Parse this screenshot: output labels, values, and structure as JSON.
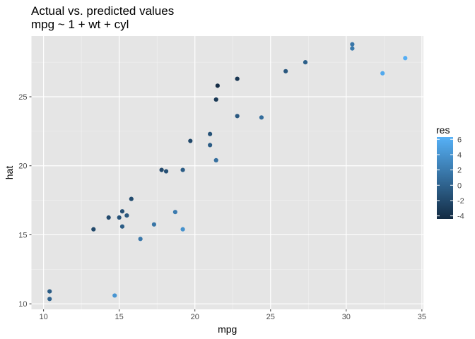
{
  "chart_data": {
    "type": "scatter",
    "title": "Actual vs. predicted values",
    "subtitle": "mpg ~ 1 + wt + cyl",
    "xlabel": "mpg",
    "ylabel": "hat",
    "xlim": [
      9.2,
      35.1
    ],
    "ylim": [
      9.6,
      29.4
    ],
    "x_ticks": [
      10,
      15,
      20,
      25,
      30,
      35
    ],
    "y_ticks": [
      10,
      15,
      20,
      25
    ],
    "grid": true,
    "legend": {
      "title": "res",
      "position": "right",
      "type": "colorbar",
      "range": [
        -4.4,
        6.3
      ],
      "ticks": [
        6,
        4,
        2,
        0,
        -2,
        -4
      ],
      "low_color": "#132B43",
      "high_color": "#56B1F7"
    },
    "points": [
      {
        "x": 10.4,
        "y": 10.9,
        "res": -0.5
      },
      {
        "x": 10.4,
        "y": 10.35,
        "res": 0.0
      },
      {
        "x": 14.7,
        "y": 10.6,
        "res": 4.1
      },
      {
        "x": 13.3,
        "y": 15.4,
        "res": -2.1
      },
      {
        "x": 14.3,
        "y": 16.25,
        "res": -1.9
      },
      {
        "x": 15.0,
        "y": 16.25,
        "res": -1.2
      },
      {
        "x": 15.2,
        "y": 16.7,
        "res": -1.5
      },
      {
        "x": 15.2,
        "y": 15.6,
        "res": -0.4
      },
      {
        "x": 15.5,
        "y": 16.4,
        "res": -0.9
      },
      {
        "x": 15.8,
        "y": 17.6,
        "res": -1.8
      },
      {
        "x": 16.4,
        "y": 14.7,
        "res": 1.7
      },
      {
        "x": 17.3,
        "y": 15.75,
        "res": 1.5
      },
      {
        "x": 18.7,
        "y": 16.65,
        "res": 2.0
      },
      {
        "x": 19.2,
        "y": 15.4,
        "res": 3.8
      },
      {
        "x": 17.8,
        "y": 19.7,
        "res": -1.9
      },
      {
        "x": 18.1,
        "y": 19.6,
        "res": -1.5
      },
      {
        "x": 19.2,
        "y": 19.7,
        "res": -0.5
      },
      {
        "x": 19.7,
        "y": 21.8,
        "res": -2.1
      },
      {
        "x": 21.0,
        "y": 21.5,
        "res": -0.5
      },
      {
        "x": 21.0,
        "y": 22.3,
        "res": -1.3
      },
      {
        "x": 21.4,
        "y": 20.4,
        "res": 1.0
      },
      {
        "x": 21.4,
        "y": 24.8,
        "res": -3.4
      },
      {
        "x": 21.5,
        "y": 25.8,
        "res": -4.3
      },
      {
        "x": 22.8,
        "y": 26.3,
        "res": -3.5
      },
      {
        "x": 22.8,
        "y": 23.6,
        "res": -0.8
      },
      {
        "x": 24.4,
        "y": 23.5,
        "res": 0.9
      },
      {
        "x": 26.0,
        "y": 26.85,
        "res": -0.9
      },
      {
        "x": 27.3,
        "y": 27.5,
        "res": -0.2
      },
      {
        "x": 30.4,
        "y": 28.8,
        "res": 1.6
      },
      {
        "x": 30.4,
        "y": 28.5,
        "res": 1.9
      },
      {
        "x": 32.4,
        "y": 26.7,
        "res": 5.7
      },
      {
        "x": 33.9,
        "y": 27.8,
        "res": 6.1
      }
    ]
  }
}
